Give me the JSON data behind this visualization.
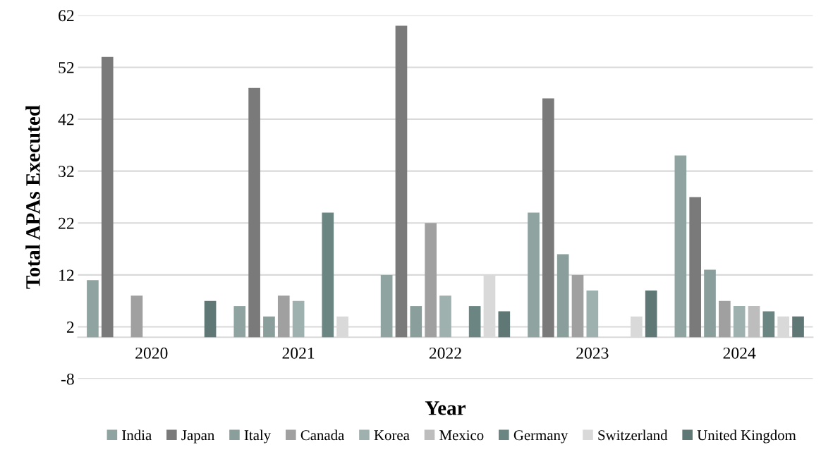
{
  "chart_data": {
    "type": "bar",
    "xlabel": "Year",
    "ylabel": "Total APAs Executed",
    "categories": [
      "2020",
      "2021",
      "2022",
      "2023",
      "2024"
    ],
    "series": [
      {
        "name": "India",
        "color": "#8fa3a1",
        "values": [
          11,
          6,
          12,
          24,
          35
        ]
      },
      {
        "name": "Japan",
        "color": "#7a7a7a",
        "values": [
          54,
          48,
          60,
          46,
          27
        ]
      },
      {
        "name": "Italy",
        "color": "#8a9e9c",
        "values": [
          0,
          4,
          6,
          16,
          13
        ]
      },
      {
        "name": "Canada",
        "color": "#a0a0a0",
        "values": [
          8,
          8,
          22,
          12,
          7
        ]
      },
      {
        "name": "Korea",
        "color": "#9fb1af",
        "values": [
          0,
          7,
          8,
          9,
          6
        ]
      },
      {
        "name": "Mexico",
        "color": "#bdbdbd",
        "values": [
          0,
          0,
          0,
          0,
          6
        ]
      },
      {
        "name": "Germany",
        "color": "#6b8583",
        "values": [
          0,
          24,
          6,
          0,
          5
        ]
      },
      {
        "name": "Switzerland",
        "color": "#d9d9d9",
        "values": [
          0,
          4,
          12,
          4,
          4
        ]
      },
      {
        "name": "United Kingdom",
        "color": "#5f7876",
        "values": [
          7,
          0,
          5,
          9,
          4
        ]
      }
    ],
    "ylim": [
      -8,
      62
    ],
    "yticks": [
      -8,
      2,
      12,
      22,
      32,
      42,
      52,
      62
    ],
    "grid": "y",
    "legend": "bottom"
  }
}
